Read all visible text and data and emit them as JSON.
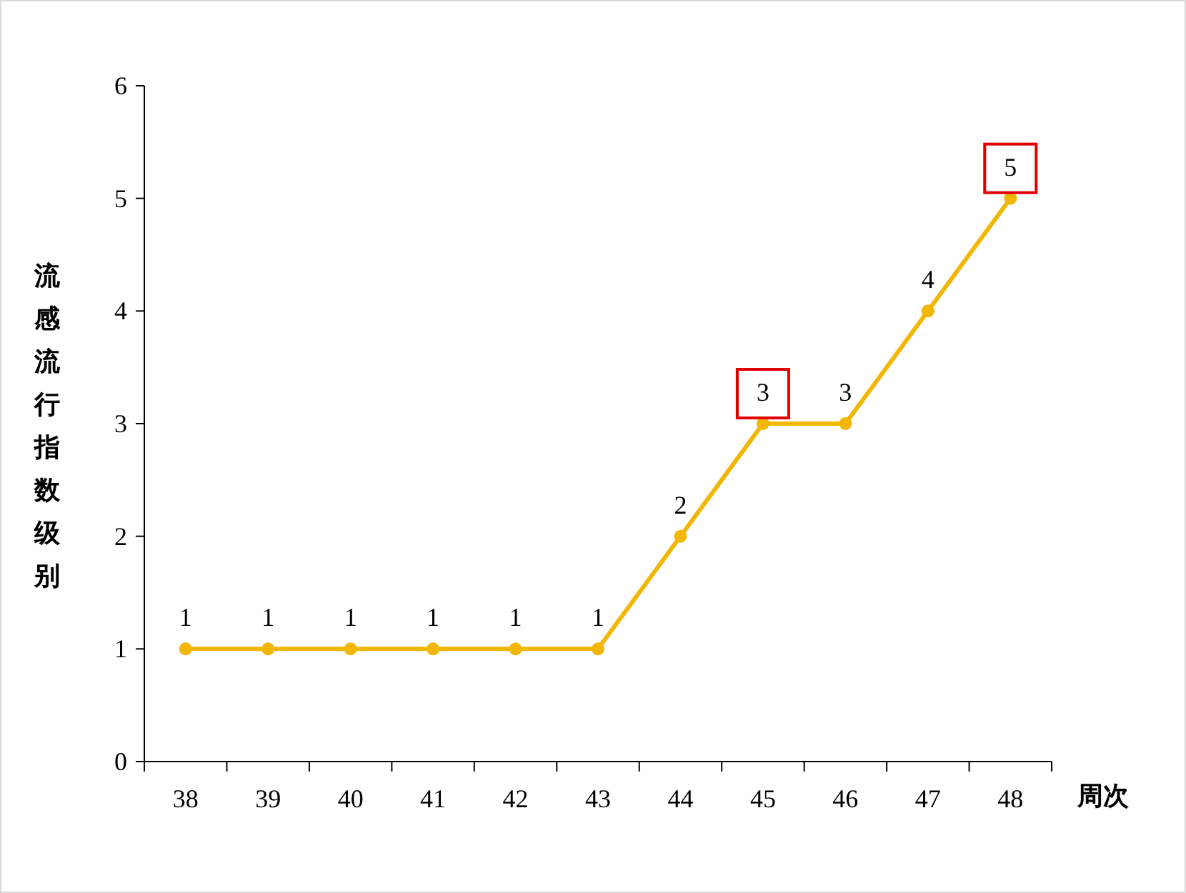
{
  "chart_data": {
    "type": "line",
    "xlabel": "周次",
    "ylabel": "流感流行指数级别",
    "categories": [
      "38",
      "39",
      "40",
      "41",
      "42",
      "43",
      "44",
      "45",
      "46",
      "47",
      "48"
    ],
    "series": [
      {
        "color": "#f2b705",
        "values": [
          1,
          1,
          1,
          1,
          1,
          1,
          2,
          3,
          3,
          4,
          5
        ]
      }
    ],
    "value_labels": [
      "1",
      "1",
      "1",
      "1",
      "1",
      "1",
      "2",
      null,
      "3",
      "4",
      null
    ],
    "annotations": [
      {
        "text": "3",
        "x": "45",
        "y": 3
      },
      {
        "text": "5",
        "x": "48",
        "y": 5
      }
    ],
    "ylim": [
      0,
      6
    ],
    "yticks": [
      0,
      1,
      2,
      3,
      4,
      5,
      6
    ],
    "marker": "circle",
    "line_style": "solid"
  }
}
